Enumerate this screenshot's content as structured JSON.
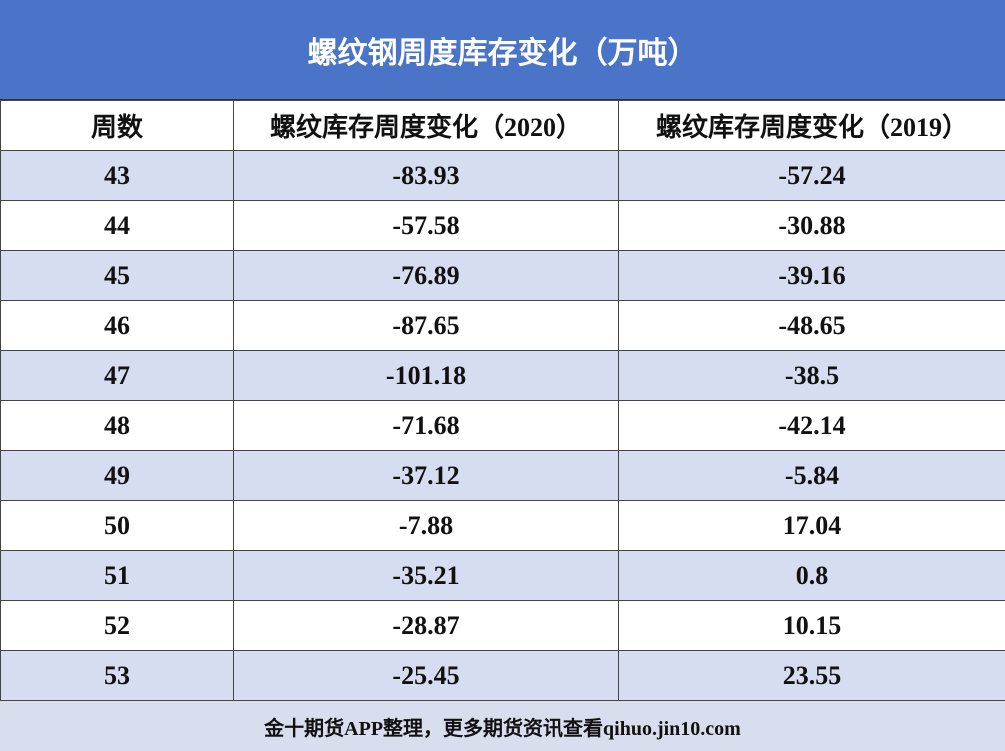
{
  "header": {
    "title": "螺纹钢周度库存变化（万吨）"
  },
  "table": {
    "columns": [
      "周数",
      "螺纹库存周度变化（2020）",
      "螺纹库存周度变化（2019）"
    ],
    "rows": [
      [
        "43",
        "-83.93",
        "-57.24"
      ],
      [
        "44",
        "-57.58",
        "-30.88"
      ],
      [
        "45",
        "-76.89",
        "-39.16"
      ],
      [
        "46",
        "-87.65",
        "-48.65"
      ],
      [
        "47",
        "-101.18",
        "-38.5"
      ],
      [
        "48",
        "-71.68",
        "-42.14"
      ],
      [
        "49",
        "-37.12",
        "-5.84"
      ],
      [
        "50",
        "-7.88",
        "17.04"
      ],
      [
        "51",
        "-35.21",
        "0.8"
      ],
      [
        "52",
        "-28.87",
        "10.15"
      ],
      [
        "53",
        "-25.45",
        "23.55"
      ]
    ]
  },
  "footer": {
    "text": "金十期货APP整理，更多期货资讯查看qihuo.jin10.com"
  }
}
